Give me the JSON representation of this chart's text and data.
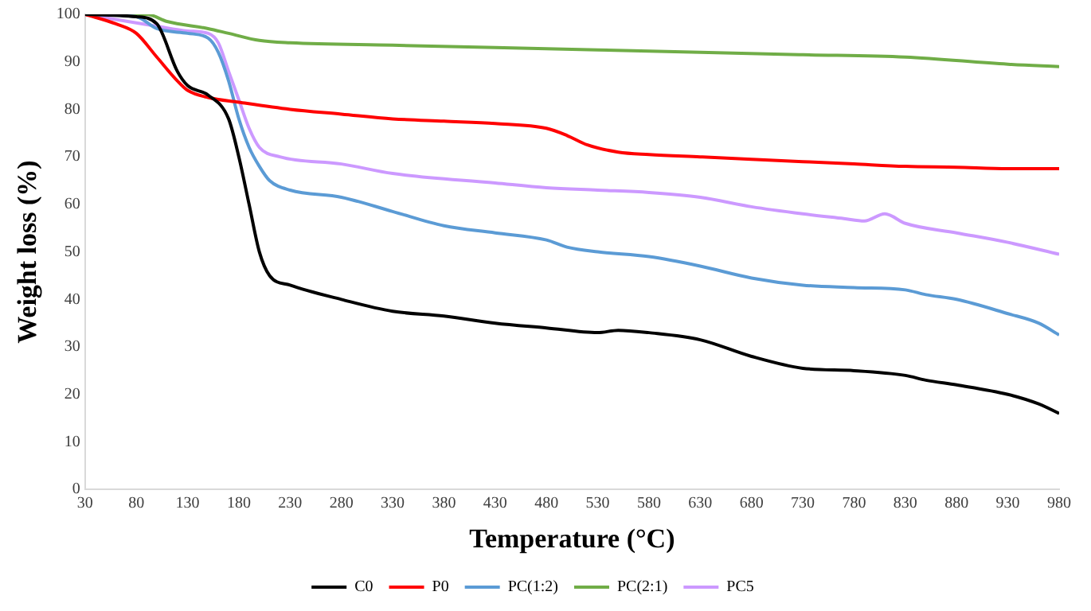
{
  "chart_data": {
    "type": "line",
    "xlabel": "Temperature (°C)",
    "ylabel": "Weight loss (%)",
    "xlim": [
      30,
      980
    ],
    "xticks": [
      30,
      80,
      130,
      180,
      230,
      280,
      330,
      380,
      430,
      480,
      530,
      580,
      630,
      680,
      730,
      780,
      830,
      880,
      930,
      980
    ],
    "ylim": [
      0,
      100
    ],
    "yticks": [
      0,
      10,
      20,
      30,
      40,
      50,
      60,
      70,
      80,
      90,
      100
    ],
    "grid": false,
    "legend": "bottom",
    "marker": "none",
    "line_style": "solid",
    "series": [
      {
        "name": "C0",
        "color": "#000000",
        "x": [
          30,
          80,
          100,
          120,
          130,
          150,
          170,
          180,
          190,
          200,
          210,
          230,
          280,
          330,
          380,
          430,
          480,
          530,
          550,
          580,
          630,
          680,
          730,
          780,
          830,
          850,
          880,
          930,
          960,
          980
        ],
        "values": [
          100,
          99.5,
          98,
          88,
          85,
          83,
          78,
          70,
          60,
          50,
          45,
          43,
          40,
          37.5,
          36.5,
          35,
          34,
          33,
          33.5,
          33,
          31.5,
          28,
          25.5,
          25,
          24,
          23,
          22,
          20,
          18,
          16
        ]
      },
      {
        "name": "P0",
        "color": "#ff0000",
        "x": [
          30,
          60,
          80,
          100,
          120,
          130,
          150,
          180,
          230,
          280,
          330,
          380,
          430,
          480,
          500,
          520,
          550,
          580,
          630,
          680,
          730,
          780,
          830,
          880,
          930,
          980
        ],
        "values": [
          100,
          98,
          96,
          91,
          86,
          84,
          82.5,
          81.5,
          80,
          79,
          78,
          77.5,
          77,
          76,
          74.5,
          72.5,
          71,
          70.5,
          70,
          69.5,
          69,
          68.5,
          68,
          67.8,
          67.5,
          67.5
        ]
      },
      {
        "name": "PC(1:2)",
        "color": "#5b9bd5",
        "x": [
          30,
          80,
          100,
          130,
          150,
          160,
          170,
          180,
          190,
          200,
          210,
          230,
          280,
          330,
          380,
          430,
          480,
          500,
          530,
          580,
          630,
          680,
          730,
          780,
          830,
          850,
          880,
          930,
          960,
          980
        ],
        "values": [
          100,
          99.5,
          97,
          96,
          95,
          92,
          86,
          78,
          72,
          68,
          65,
          63,
          61.5,
          58.5,
          55.5,
          54,
          52.5,
          51,
          50,
          49,
          47,
          44.5,
          43,
          42.5,
          42,
          41,
          40,
          37,
          35,
          32.5
        ]
      },
      {
        "name": "PC(2:1)",
        "color": "#70ad47",
        "x": [
          30,
          90,
          110,
          150,
          170,
          200,
          230,
          330,
          430,
          530,
          630,
          730,
          830,
          930,
          980
        ],
        "values": [
          100,
          100,
          98.5,
          97,
          96,
          94.5,
          94,
          93.5,
          93,
          92.5,
          92,
          91.5,
          91,
          89.5,
          89
        ]
      },
      {
        "name": "PC5",
        "color": "#cc99ff",
        "x": [
          30,
          100,
          130,
          150,
          160,
          170,
          180,
          190,
          200,
          220,
          280,
          330,
          430,
          480,
          530,
          580,
          630,
          680,
          730,
          770,
          790,
          810,
          830,
          880,
          930,
          980
        ],
        "values": [
          100,
          97.5,
          96.5,
          96,
          94,
          88,
          82,
          76,
          72,
          70,
          68.5,
          66.5,
          64.5,
          63.5,
          63,
          62.5,
          61.5,
          59.5,
          58,
          57,
          56.5,
          58,
          56,
          54,
          52,
          49.5
        ]
      }
    ]
  }
}
